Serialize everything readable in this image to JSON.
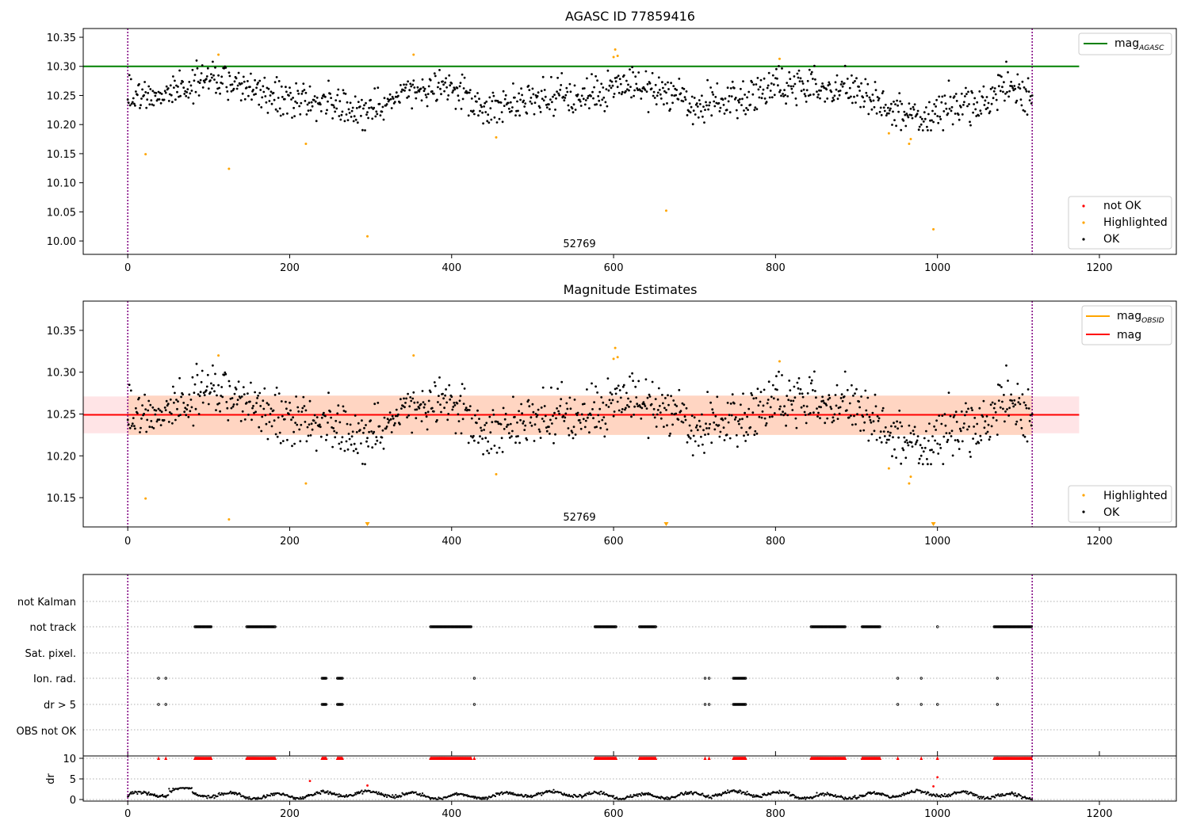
{
  "figure": {
    "observation_label": "52769"
  },
  "chart_data": [
    {
      "id": "agasc",
      "type": "scatter",
      "title": "AGASC ID 77859416",
      "xlim": [
        -55,
        1295
      ],
      "ylim": [
        9.977,
        10.365
      ],
      "x_ticks": [
        0,
        200,
        400,
        600,
        800,
        1000,
        1200
      ],
      "y_ticks": [
        10.0,
        10.05,
        10.1,
        10.15,
        10.2,
        10.25,
        10.3,
        10.35
      ],
      "reference_line": {
        "name": "mag_AGASC",
        "y": 10.3,
        "x_range": [
          -55,
          1175
        ],
        "color": "#008000"
      },
      "vlines": [
        0,
        1117
      ],
      "legend_line": [
        {
          "label": "mag",
          "sub": "AGASC",
          "color": "#008000"
        }
      ],
      "legend_points": [
        {
          "label": "not OK",
          "color": "#ff0000"
        },
        {
          "label": "Highlighted",
          "color": "#ffa500"
        },
        {
          "label": "OK",
          "color": "#000000"
        }
      ],
      "highlighted": [
        [
          22,
          10.149
        ],
        [
          112,
          10.32
        ],
        [
          125,
          10.124
        ],
        [
          220,
          10.167
        ],
        [
          296,
          10.008
        ],
        [
          353,
          10.32
        ],
        [
          455,
          10.178
        ],
        [
          600,
          10.316
        ],
        [
          602,
          10.329
        ],
        [
          605,
          10.318
        ],
        [
          665,
          10.052
        ],
        [
          805,
          10.313
        ],
        [
          940,
          10.185
        ],
        [
          965,
          10.167
        ],
        [
          967,
          10.175
        ],
        [
          995,
          10.02
        ]
      ],
      "ok_series": "Black points: 1118 frame magnitudes in the range ~10.19-10.31"
    },
    {
      "id": "estimates",
      "type": "scatter",
      "title": "Magnitude Estimates",
      "xlim": [
        -55,
        1295
      ],
      "ylim": [
        10.115,
        10.385
      ],
      "x_ticks": [
        0,
        200,
        400,
        600,
        800,
        1000,
        1200
      ],
      "y_ticks": [
        10.15,
        10.2,
        10.25,
        10.3,
        10.35
      ],
      "mag_line": {
        "name": "mag",
        "y": 10.249,
        "color": "#ff0000"
      },
      "mag_band": {
        "low": 10.227,
        "high": 10.271,
        "x_range": [
          -55,
          1175
        ],
        "color": "#ffe4e6"
      },
      "obsid_band": {
        "low": 10.225,
        "high": 10.272,
        "x_range": [
          0,
          1117
        ],
        "color": "#ffd5c2"
      },
      "vlines": [
        0,
        1117
      ],
      "legend_line": [
        {
          "label": "mag",
          "sub": "OBSID",
          "color": "#ffa500"
        },
        {
          "label": "mag",
          "sub": "",
          "color": "#ff0000"
        }
      ],
      "legend_points": [
        {
          "label": "Highlighted",
          "color": "#ffa500"
        },
        {
          "label": "OK",
          "color": "#000000"
        }
      ],
      "highlighted": [
        [
          22,
          10.149
        ],
        [
          112,
          10.32
        ],
        [
          125,
          10.124
        ],
        [
          220,
          10.167
        ],
        [
          353,
          10.32
        ],
        [
          455,
          10.178
        ],
        [
          600,
          10.316
        ],
        [
          602,
          10.329
        ],
        [
          605,
          10.318
        ],
        [
          805,
          10.313
        ],
        [
          940,
          10.185
        ],
        [
          965,
          10.167
        ],
        [
          967,
          10.175
        ]
      ],
      "out_of_range_markers": [
        296,
        665,
        995
      ]
    },
    {
      "id": "flags",
      "type": "scatter",
      "xlim": [
        -55,
        1295
      ],
      "categories": [
        "not Kalman",
        "not track",
        "Sat. pixel.",
        "Ion. rad.",
        "dr > 5",
        "OBS not OK"
      ],
      "flag_ranges": {
        "not Kalman": [],
        "not track": [
          [
            83,
            103
          ],
          [
            147,
            182
          ],
          [
            374,
            424
          ],
          [
            577,
            603
          ],
          [
            632,
            652
          ],
          [
            844,
            886
          ],
          [
            907,
            929
          ],
          [
            1000,
            1000
          ],
          [
            1070,
            1116
          ]
        ],
        "Sat. pixel.": [],
        "Ion. rad.": [
          [
            38,
            38
          ],
          [
            47,
            47
          ],
          [
            240,
            245
          ],
          [
            259,
            265
          ],
          [
            428,
            428
          ],
          [
            713,
            713
          ],
          [
            718,
            718
          ],
          [
            748,
            763
          ],
          [
            951,
            951
          ],
          [
            980,
            980
          ],
          [
            1074,
            1074
          ]
        ],
        "dr > 5": [
          [
            38,
            38
          ],
          [
            47,
            47
          ],
          [
            240,
            245
          ],
          [
            259,
            265
          ],
          [
            428,
            428
          ],
          [
            713,
            713
          ],
          [
            718,
            718
          ],
          [
            748,
            763
          ],
          [
            951,
            951
          ],
          [
            980,
            980
          ],
          [
            1000,
            1000
          ],
          [
            1074,
            1074
          ]
        ],
        "OBS not OK": []
      }
    },
    {
      "id": "dr",
      "type": "scatter",
      "ylabel": "dr",
      "xlim": [
        -55,
        1295
      ],
      "ylim": [
        -0.3,
        10
      ],
      "x_ticks": [
        0,
        200,
        400,
        600,
        800,
        1000,
        1200
      ],
      "y_ticks": [
        0,
        5,
        10
      ],
      "clip_value": 10,
      "red_points": [
        [
          225,
          4.5
        ],
        [
          296,
          3.4
        ],
        [
          995,
          3.2
        ],
        [
          1000,
          5.4
        ]
      ]
    }
  ]
}
